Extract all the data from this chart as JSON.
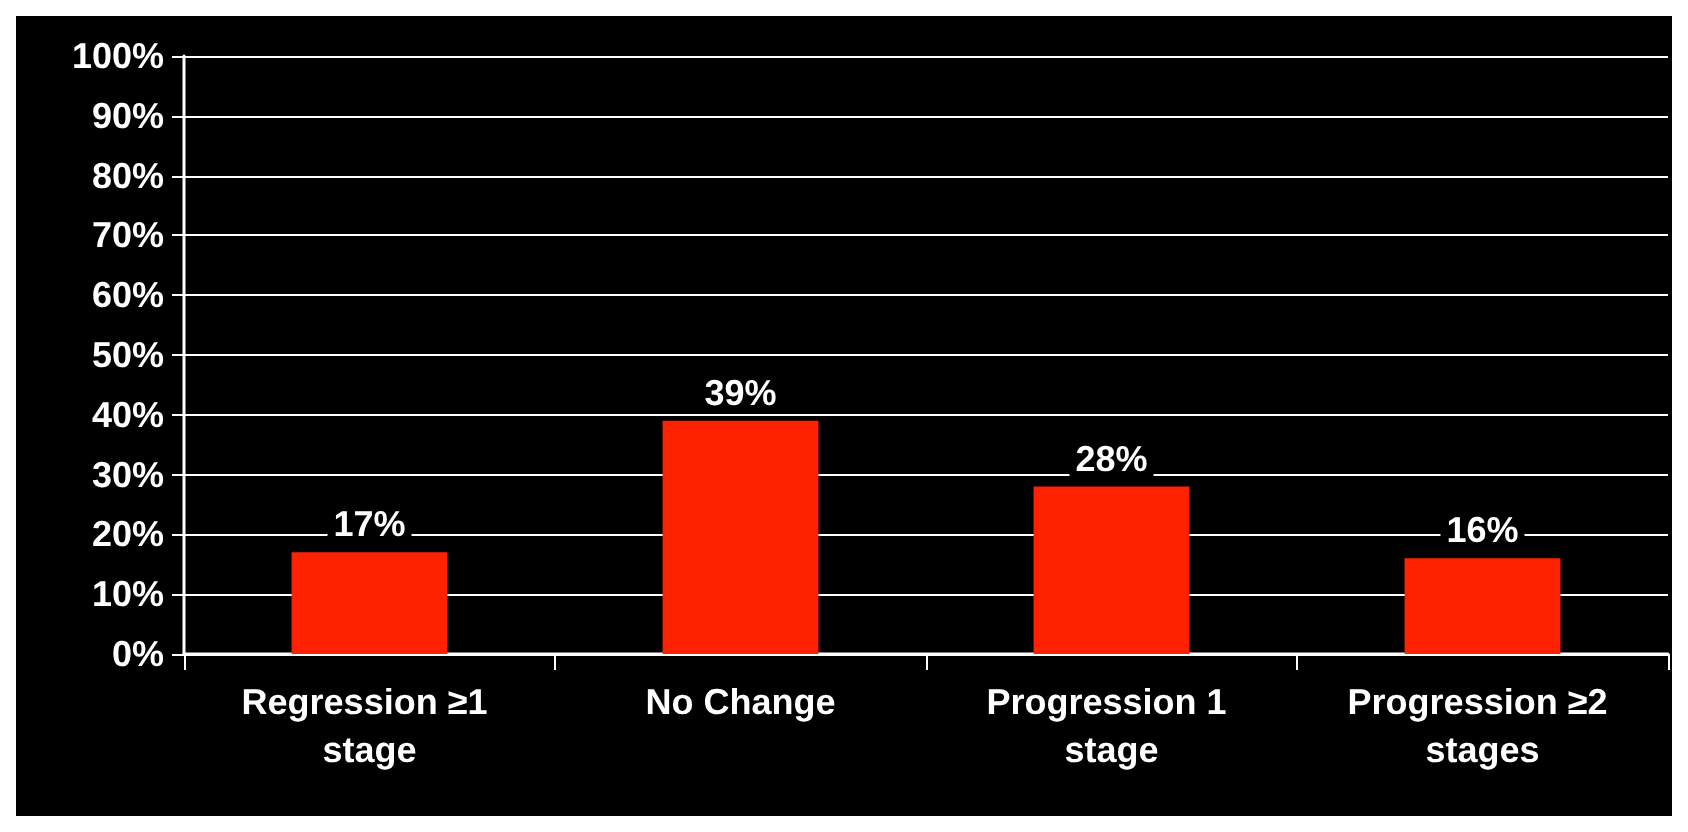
{
  "chart_data": {
    "type": "bar",
    "categories": [
      "Regression ≥1 stage",
      "No Change",
      "Progression 1 stage",
      "Progression ≥2 stages"
    ],
    "values": [
      17,
      39,
      28,
      16
    ],
    "color": "#ff2200",
    "value_labels": [
      "17%",
      "39%",
      "28%",
      "16%"
    ],
    "ylim": [
      0,
      100
    ],
    "yticks": [
      {
        "value": 0,
        "label": "0%"
      },
      {
        "value": 10,
        "label": "10%"
      },
      {
        "value": 20,
        "label": "20%"
      },
      {
        "value": 30,
        "label": "30%"
      },
      {
        "value": 40,
        "label": "40%"
      },
      {
        "value": 50,
        "label": "50%"
      },
      {
        "value": 60,
        "label": "60%"
      },
      {
        "value": 70,
        "label": "70%"
      },
      {
        "value": 80,
        "label": "80%"
      },
      {
        "value": 90,
        "label": "90%"
      },
      {
        "value": 100,
        "label": "100%"
      }
    ],
    "grid": true
  }
}
